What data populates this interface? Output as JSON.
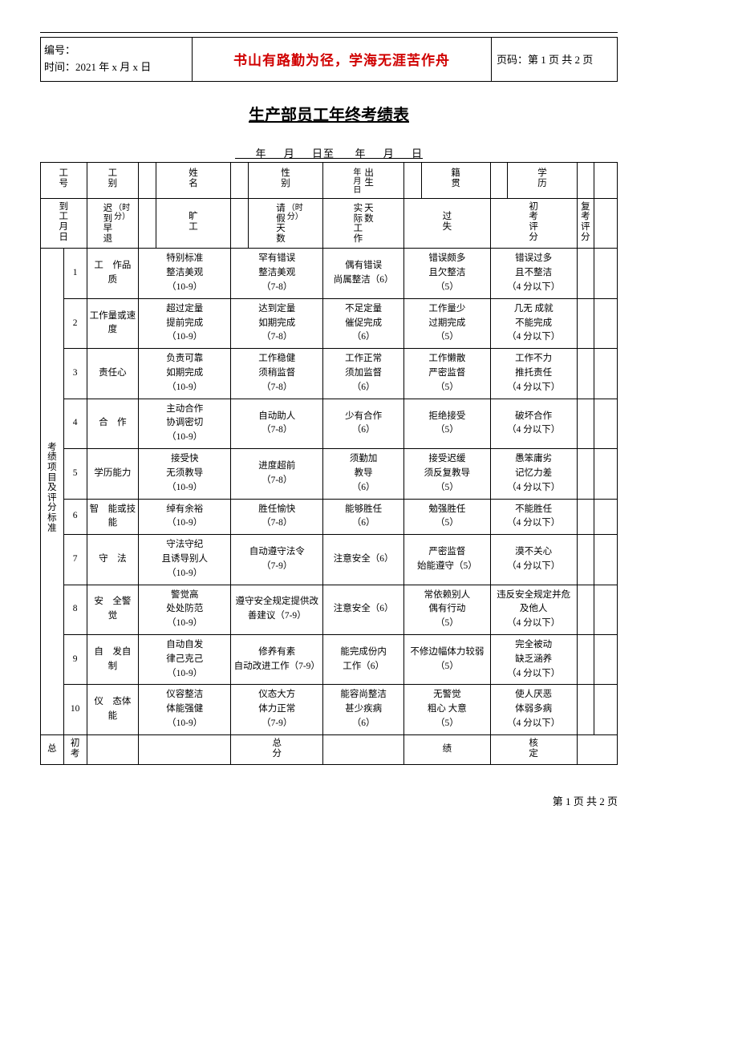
{
  "header": {
    "serial_label": "编号：",
    "time_label": "时间：2021 年 x 月 x 日",
    "motto": "书山有路勤为径，学海无涯苦作舟",
    "page_label": "页码：第 1 页 共 2 页"
  },
  "title": "生产部员工年终考绩表",
  "date_range": "      年     月     日至      年     月     日",
  "info_row": {
    "c1": "工号",
    "c2": "工别",
    "c3": "姓名",
    "c4": "性别",
    "c5a": "年月日",
    "c5b": "出生",
    "c6": "籍贯",
    "c7": "学历"
  },
  "attend_row": {
    "c1": "到工月日",
    "c2": "迟到早退",
    "c2_note": "（时分）",
    "c3": "旷工",
    "c4": "请假天数",
    "c4_note": "（时分）",
    "c5": "实际工作",
    "c5_note": "天数",
    "c6": "过失",
    "c7": "初考评分",
    "c8": "复考评分"
  },
  "section_label": "考绩项目及评分标准",
  "criteria": [
    {
      "n": "1",
      "name": "工　作品　质",
      "a": "特别标准\n整洁美观\n（10-9）",
      "b": "罕有错误\n整洁美观\n（7-8）",
      "c": "偶有错误\n尚属整洁（6）",
      "d": "错误颇多\n且欠整洁\n（5）",
      "e": "错误过多\n且不整洁\n（4 分以下）"
    },
    {
      "n": "2",
      "name": "工作量或速度",
      "a": "超过定量\n提前完成\n（10-9）",
      "b": "达到定量\n如期完成\n（7-8）",
      "c": "不足定量\n催促完成\n（6）",
      "d": "工作量少\n过期完成\n（5）",
      "e": "几无 成就\n不能完成\n（4 分以下）"
    },
    {
      "n": "3",
      "name": "责任心",
      "a": "负责可靠\n如期完成\n（10-9）",
      "b": "工作稳健\n须稍监督\n（7-8）",
      "c": "工作正常\n须加监督\n（6）",
      "d": "工作懒散\n严密监督\n（5）",
      "e": "工作不力\n推托责任\n（4 分以下）"
    },
    {
      "n": "4",
      "name": "合　作",
      "a": "主动合作\n协调密切\n（10-9）",
      "b": "自动助人\n（7-8）",
      "c": "少有合作\n（6）",
      "d": "拒绝接受\n（5）",
      "e": "破坏合作\n（4 分以下）"
    },
    {
      "n": "5",
      "name": "学历能力",
      "a": "接受快\n无须教导\n（10-9）",
      "b": "进度超前\n（7-8）",
      "c": "须勤加\n教导\n（6）",
      "d": "接受迟缓\n须反复教导\n（5）",
      "e": "愚笨庸劣\n记忆力差\n（4 分以下）"
    },
    {
      "n": "6",
      "name": "智　能或技能",
      "a": "绰有余裕\n（10-9）",
      "b": "胜任愉快\n（7-8）",
      "c": "能够胜任\n（6）",
      "d": "勉强胜任\n（5）",
      "e": "不能胜任\n（4 分以下）"
    },
    {
      "n": "7",
      "name": "守　法",
      "a": "守法守纪\n且诱导别人\n（10-9）",
      "b": "自动遵守法令\n（7-9）",
      "c": "注意安全（6）",
      "d": "严密监督\n始能遵守（5）",
      "e": "漠不关心\n（4 分以下）"
    },
    {
      "n": "8",
      "name": "安　全警　觉",
      "a": "警觉高\n处处防范\n（10-9）",
      "b": "遵守安全规定提供改善建议（7-9）",
      "c": "注意安全（6）",
      "d": "常依赖别人\n偶有行动\n（5）",
      "e": "违反安全规定并危及他人\n（4 分以下）"
    },
    {
      "n": "9",
      "name": "自　发自　制",
      "a": "自动自发\n律己克己\n（10-9）",
      "b": "修养有素\n自动改进工作（7-9）",
      "c": "能完成份内\n工作（6）",
      "d": "不修边幅体力较弱\n（5）",
      "e": "完全被动\n缺乏涵养\n（4 分以下）"
    },
    {
      "n": "10",
      "name": "仪　态体　能",
      "a": "仪容整洁\n体能强健\n（10-9）",
      "b": "仪态大方\n体力正常\n（7-9）",
      "c": "能容尚整洁\n甚少疾病\n（6）",
      "d": "无警觉\n粗心 大意\n（5）",
      "e": "使人厌恶\n体弱多病\n（4 分以下）"
    }
  ],
  "totals": {
    "zong": "总",
    "chukao": "初考",
    "zongfen": "总分",
    "ji": "绩",
    "heding": "核定"
  },
  "footer_page": "第 1 页 共 2 页",
  "colors": {
    "motto": "#d00000",
    "text": "#000000",
    "bg": "#ffffff"
  }
}
